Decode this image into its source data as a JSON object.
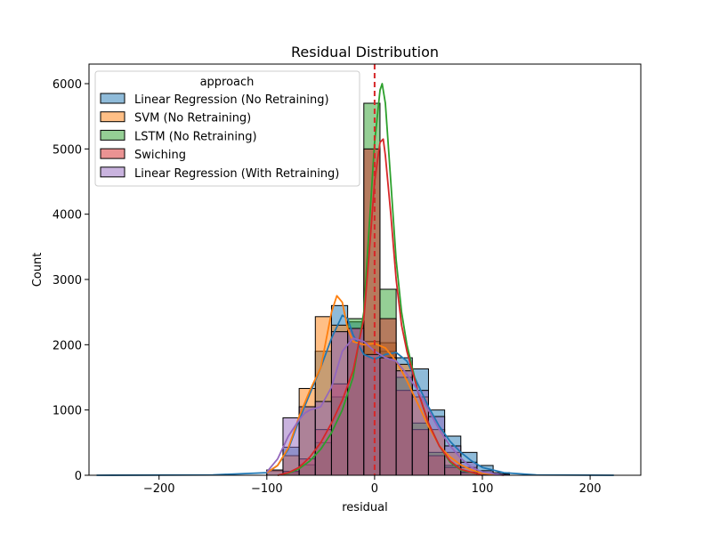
{
  "chart_data": {
    "type": "histogram",
    "title": "Residual Distribution",
    "xlabel": "residual",
    "ylabel": "Count",
    "xlim": [
      -265,
      247
    ],
    "ylim": [
      0,
      6300
    ],
    "xticks": [
      -200,
      -100,
      0,
      100,
      200
    ],
    "yticks": [
      0,
      1000,
      2000,
      3000,
      4000,
      5000,
      6000
    ],
    "grid": false,
    "legend_title": "approach",
    "legend_position": "upper-left",
    "reference_line": {
      "x": 0,
      "color": "#d62728",
      "style": "dashed"
    },
    "bin_edges": [
      -100,
      -85,
      -70,
      -55,
      -40,
      -25,
      -10,
      5,
      20,
      35,
      50,
      65,
      80,
      95,
      110,
      125
    ],
    "series": [
      {
        "name": "Linear Regression (No Retraining)",
        "color": "#1f77b4",
        "counts": [
          60,
          430,
          1050,
          1900,
          2600,
          2350,
          1800,
          1900,
          1800,
          1630,
          1000,
          600,
          350,
          150,
          40
        ]
      },
      {
        "name": "SVM (No Retraining)",
        "color": "#ff7f0e",
        "counts": [
          80,
          300,
          1330,
          2430,
          2300,
          2050,
          2050,
          2030,
          1700,
          1200,
          700,
          350,
          120,
          40,
          10
        ]
      },
      {
        "name": "LSTM (No Retraining)",
        "color": "#2ca02c",
        "counts": [
          0,
          40,
          160,
          500,
          1200,
          2400,
          5700,
          2850,
          1500,
          800,
          350,
          150,
          50,
          10,
          0
        ]
      },
      {
        "name": "Swiching",
        "color": "#d62728",
        "counts": [
          0,
          60,
          250,
          700,
          1400,
          2250,
          5000,
          2400,
          1300,
          700,
          300,
          120,
          40,
          10,
          0
        ]
      },
      {
        "name": "Linear Regression (With Retraining)",
        "color": "#9467bd",
        "counts": [
          80,
          880,
          1050,
          1130,
          2200,
          2250,
          1850,
          1800,
          1600,
          1300,
          900,
          450,
          200,
          70,
          20
        ]
      }
    ],
    "kde": [
      {
        "name": "Linear Regression (No Retraining)",
        "x": [
          -258,
          -150,
          -100,
          -90,
          -80,
          -70,
          -60,
          -50,
          -40,
          -30,
          -25,
          -20,
          -10,
          0,
          10,
          20,
          30,
          40,
          50,
          60,
          70,
          80,
          90,
          100,
          120,
          150,
          222
        ],
        "y": [
          0,
          5,
          40,
          150,
          400,
          850,
          1250,
          1650,
          2100,
          2450,
          2400,
          2150,
          1850,
          1780,
          1850,
          1880,
          1750,
          1400,
          1050,
          750,
          520,
          350,
          220,
          120,
          40,
          5,
          0
        ]
      },
      {
        "name": "SVM (No Retraining)",
        "x": [
          -100,
          -90,
          -80,
          -70,
          -60,
          -50,
          -40,
          -35,
          -30,
          -25,
          -20,
          -10,
          0,
          10,
          20,
          30,
          40,
          50,
          60,
          70,
          80,
          90,
          100,
          120
        ],
        "y": [
          40,
          150,
          420,
          900,
          1300,
          1650,
          2500,
          2750,
          2650,
          2250,
          2050,
          2000,
          2020,
          1950,
          1750,
          1450,
          1100,
          750,
          450,
          280,
          160,
          80,
          30,
          0
        ]
      },
      {
        "name": "LSTM (No Retraining)",
        "x": [
          -90,
          -80,
          -70,
          -60,
          -50,
          -40,
          -30,
          -20,
          -10,
          -5,
          0,
          5,
          7,
          10,
          15,
          20,
          25,
          30,
          40,
          50,
          60,
          70,
          80,
          100
        ],
        "y": [
          0,
          30,
          100,
          220,
          400,
          650,
          1000,
          1500,
          2500,
          3800,
          5100,
          5900,
          6000,
          5700,
          4500,
          3300,
          2500,
          2000,
          1300,
          800,
          450,
          200,
          80,
          0
        ]
      },
      {
        "name": "Swiching",
        "x": [
          -90,
          -80,
          -70,
          -60,
          -50,
          -40,
          -30,
          -20,
          -10,
          -5,
          0,
          5,
          8,
          10,
          15,
          20,
          25,
          30,
          40,
          50,
          60,
          70,
          80,
          100
        ],
        "y": [
          0,
          40,
          120,
          280,
          500,
          800,
          1150,
          1600,
          2400,
          3400,
          4500,
          5100,
          5150,
          4900,
          4000,
          3000,
          2300,
          1900,
          1300,
          800,
          450,
          220,
          90,
          0
        ]
      },
      {
        "name": "Linear Regression (With Retraining)",
        "x": [
          -100,
          -90,
          -80,
          -70,
          -65,
          -60,
          -50,
          -40,
          -30,
          -20,
          -10,
          0,
          10,
          20,
          30,
          40,
          50,
          60,
          70,
          80,
          90,
          100,
          120
        ],
        "y": [
          50,
          250,
          600,
          850,
          950,
          1000,
          1050,
          1350,
          1900,
          2100,
          2050,
          1900,
          1800,
          1750,
          1550,
          1300,
          1000,
          700,
          450,
          260,
          120,
          50,
          0
        ]
      }
    ]
  }
}
